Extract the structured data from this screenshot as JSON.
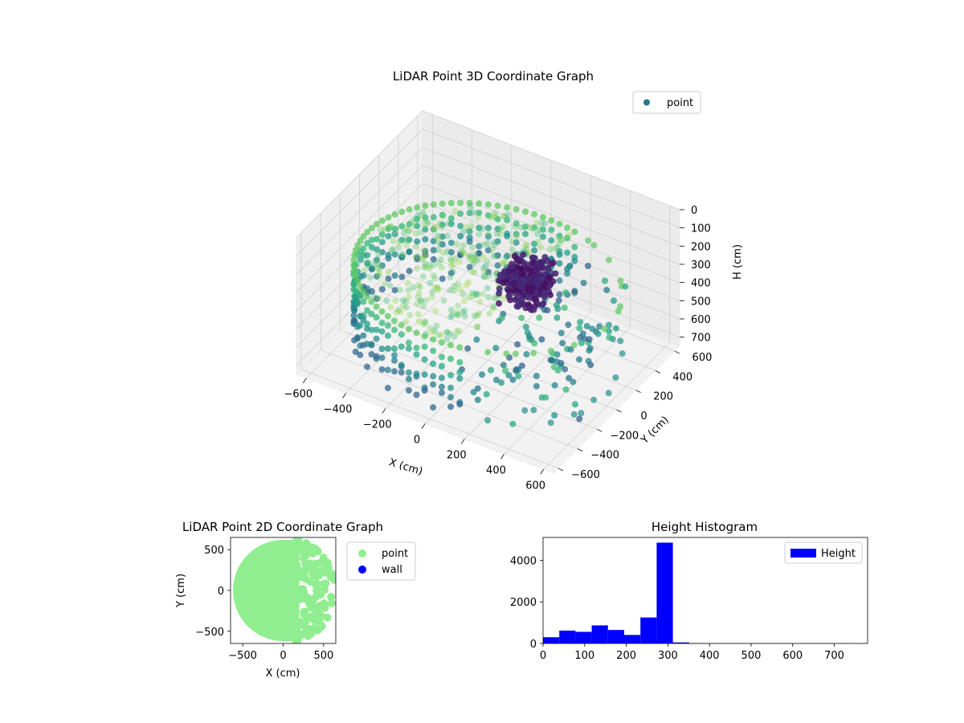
{
  "chart_data": [
    {
      "type": "scatter3d",
      "title": "LiDAR Point 3D Coordinate Graph",
      "xlabel": "X (cm)",
      "ylabel": "Y (cm)",
      "zlabel": "H (cm)",
      "xlim": [
        -650,
        650
      ],
      "ylim": [
        -650,
        650
      ],
      "zlim": [
        0,
        750
      ],
      "z_inverted": true,
      "x_ticks": [
        -600,
        -400,
        -200,
        0,
        200,
        400,
        600
      ],
      "y_ticks": [
        -600,
        -400,
        -200,
        0,
        200,
        400,
        600
      ],
      "z_ticks": [
        0,
        100,
        200,
        300,
        400,
        500,
        600,
        700
      ],
      "grid": true,
      "legend": {
        "position": "upper-right",
        "entries": [
          "point"
        ]
      },
      "colormap": "viridis",
      "series": [
        {
          "name": "point",
          "color": "#2a788e",
          "description_values": {
            "ring_radius": 610,
            "ring_height_range": [
              300,
              720
            ],
            "floor_height": 300,
            "cluster_center": [
              200,
              0
            ],
            "cluster_height_range": [
              150,
              330
            ]
          }
        }
      ]
    },
    {
      "type": "scatter",
      "title": "LiDAR Point 2D Coordinate Graph",
      "xlabel": "X (cm)",
      "ylabel": "Y (cm)",
      "xlim": [
        -650,
        650
      ],
      "ylim": [
        -650,
        650
      ],
      "x_ticks": [
        -500,
        0,
        500
      ],
      "y_ticks": [
        -500,
        0,
        500
      ],
      "legend": {
        "position": "outside-right",
        "entries": [
          "point",
          "wall"
        ]
      },
      "series": [
        {
          "name": "point",
          "color": "#90ee90",
          "disc_radius": 620,
          "cutoff_x": 200
        },
        {
          "name": "wall",
          "color": "#0000ff"
        }
      ]
    },
    {
      "type": "bar",
      "title": "Height Histogram",
      "xlabel": "",
      "ylabel": "",
      "xlim": [
        0,
        780
      ],
      "ylim": [
        0,
        5100
      ],
      "x_ticks": [
        0,
        100,
        200,
        300,
        400,
        500,
        600,
        700
      ],
      "y_ticks": [
        0,
        2000,
        4000
      ],
      "legend": {
        "position": "upper-right",
        "entries": [
          "Height"
        ]
      },
      "bin_width": 39,
      "bin_start": 0,
      "series": [
        {
          "name": "Height",
          "color": "#0000ff",
          "values": [
            300,
            620,
            560,
            870,
            650,
            410,
            1250,
            4850,
            50,
            15,
            10,
            8,
            6,
            5,
            5,
            4,
            4,
            3,
            3,
            2
          ]
        }
      ]
    }
  ]
}
